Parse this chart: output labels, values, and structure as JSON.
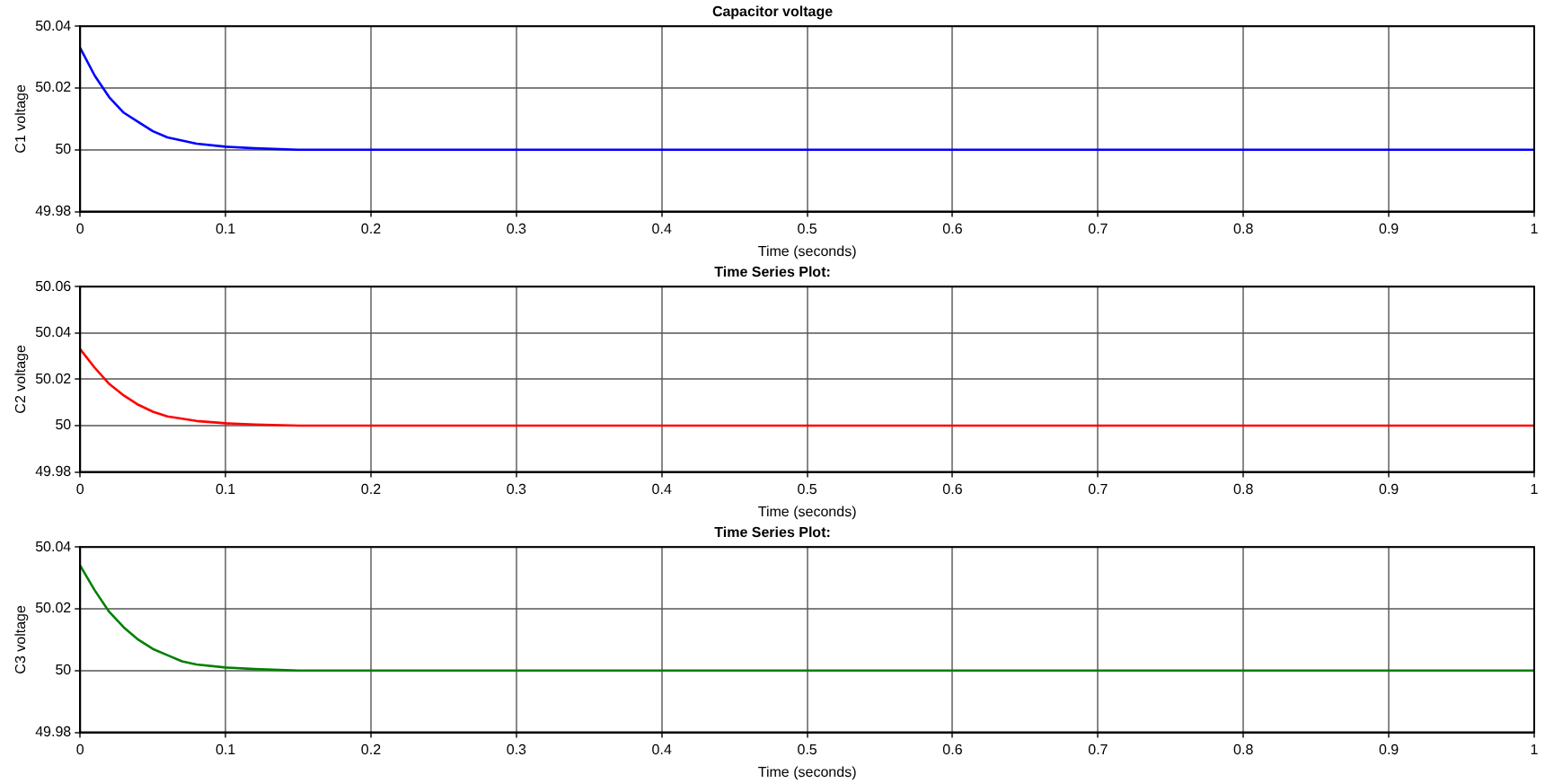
{
  "chart_data": [
    {
      "type": "line",
      "title": "Capacitor voltage",
      "xlabel": "Time (seconds)",
      "ylabel": "C1 voltage",
      "x": [
        0,
        0.01,
        0.02,
        0.03,
        0.04,
        0.05,
        0.06,
        0.07,
        0.08,
        0.1,
        0.12,
        0.15,
        0.2,
        0.5,
        1
      ],
      "series": [
        {
          "color": "#0000ff",
          "values": [
            50.033,
            50.024,
            50.017,
            50.012,
            50.009,
            50.006,
            50.004,
            50.003,
            50.002,
            50.001,
            50.0005,
            50,
            50,
            50,
            50
          ]
        }
      ],
      "xlim": [
        0,
        1
      ],
      "xticks": [
        0,
        0.1,
        0.2,
        0.3,
        0.4,
        0.5,
        0.6,
        0.7,
        0.8,
        0.9,
        1
      ],
      "ylim": [
        49.98,
        50.04
      ],
      "yticks": [
        49.98,
        50,
        50.02,
        50.04
      ],
      "grid": true,
      "legend": false,
      "marker": "none"
    },
    {
      "type": "line",
      "title": "Time Series Plot:",
      "xlabel": "Time (seconds)",
      "ylabel": "C2 voltage",
      "x": [
        0,
        0.01,
        0.02,
        0.03,
        0.04,
        0.05,
        0.06,
        0.07,
        0.08,
        0.1,
        0.12,
        0.15,
        0.2,
        0.5,
        1
      ],
      "series": [
        {
          "color": "#ff0000",
          "values": [
            50.033,
            50.025,
            50.018,
            50.013,
            50.009,
            50.006,
            50.004,
            50.003,
            50.002,
            50.001,
            50.0005,
            50,
            50,
            50,
            50
          ]
        }
      ],
      "xlim": [
        0,
        1
      ],
      "xticks": [
        0,
        0.1,
        0.2,
        0.3,
        0.4,
        0.5,
        0.6,
        0.7,
        0.8,
        0.9,
        1
      ],
      "ylim": [
        49.98,
        50.06
      ],
      "yticks": [
        49.98,
        50,
        50.02,
        50.04,
        50.06
      ],
      "grid": true,
      "legend": false,
      "marker": "none"
    },
    {
      "type": "line",
      "title": "Time Series Plot:",
      "xlabel": "Time (seconds)",
      "ylabel": "C3 voltage",
      "x": [
        0,
        0.01,
        0.02,
        0.03,
        0.04,
        0.05,
        0.06,
        0.07,
        0.08,
        0.1,
        0.12,
        0.15,
        0.2,
        0.5,
        1
      ],
      "series": [
        {
          "color": "#008000",
          "values": [
            50.034,
            50.026,
            50.019,
            50.014,
            50.01,
            50.007,
            50.005,
            50.003,
            50.002,
            50.001,
            50.0005,
            50,
            50,
            50,
            50
          ]
        }
      ],
      "xlim": [
        0,
        1
      ],
      "xticks": [
        0,
        0.1,
        0.2,
        0.3,
        0.4,
        0.5,
        0.6,
        0.7,
        0.8,
        0.9,
        1
      ],
      "ylim": [
        49.98,
        50.04
      ],
      "yticks": [
        49.98,
        50,
        50.02,
        50.04
      ],
      "grid": true,
      "legend": false,
      "marker": "none"
    }
  ]
}
